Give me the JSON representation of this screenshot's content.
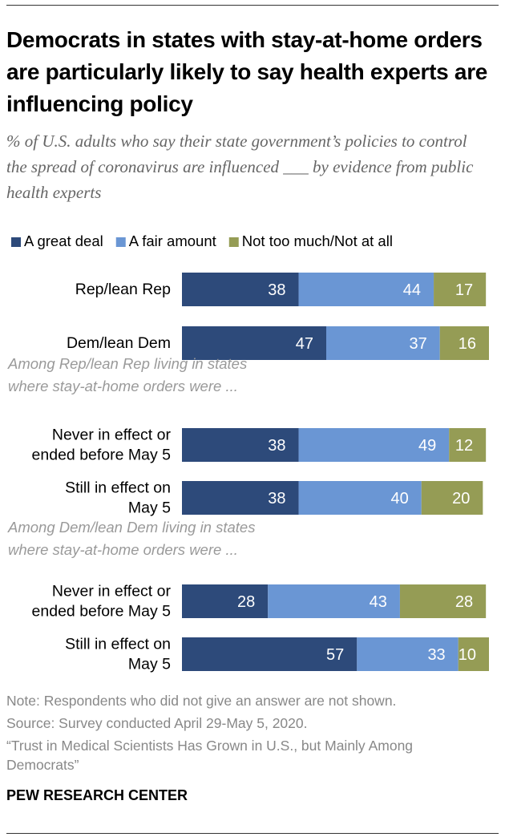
{
  "title": "Democrats in states with stay-at-home orders are particularly likely to say health experts are influencing policy",
  "subtitle": "% of U.S. adults who say their state government’s policies to control the spread of coronavirus are influenced ___ by evidence from public health experts",
  "colors": {
    "great_deal": "#2d4a7a",
    "fair_amount": "#6a96d4",
    "not_too_much": "#959c55",
    "group_label": "#9a9a9a"
  },
  "chart_data": {
    "type": "bar",
    "orientation": "horizontal",
    "stacked": true,
    "legend": {
      "position": "top",
      "entries": [
        "A great deal",
        "A fair amount",
        "Not too much/Not at all"
      ]
    },
    "rows": [
      {
        "label": [
          "Rep/lean Rep"
        ],
        "values": [
          38,
          44,
          17
        ]
      },
      {
        "label": [
          "Dem/lean Dem"
        ],
        "values": [
          47,
          37,
          16
        ]
      },
      {
        "group_header": [
          "Among Rep/lean Rep living in states",
          "where stay-at-home orders were ..."
        ]
      },
      {
        "label": [
          "Never in effect or",
          "ended before May 5"
        ],
        "values": [
          38,
          49,
          12
        ]
      },
      {
        "label": [
          "Still in effect on",
          "May 5"
        ],
        "values": [
          38,
          40,
          20
        ]
      },
      {
        "group_header": [
          "Among Dem/lean Dem living in states",
          "where stay-at-home orders were ..."
        ]
      },
      {
        "label": [
          "Never in effect or",
          "ended before May 5"
        ],
        "values": [
          28,
          43,
          28
        ]
      },
      {
        "label": [
          "Still in effect on",
          "May 5"
        ],
        "values": [
          57,
          33,
          10
        ]
      }
    ]
  },
  "footer": {
    "note": "Note: Respondents who did not give an answer are not shown.",
    "source": "Source: Survey conducted April 29-May 5, 2020.",
    "report": "“Trust in Medical Scientists Has Grown in U.S., but Mainly Among Democrats”",
    "logo": "PEW RESEARCH CENTER"
  }
}
